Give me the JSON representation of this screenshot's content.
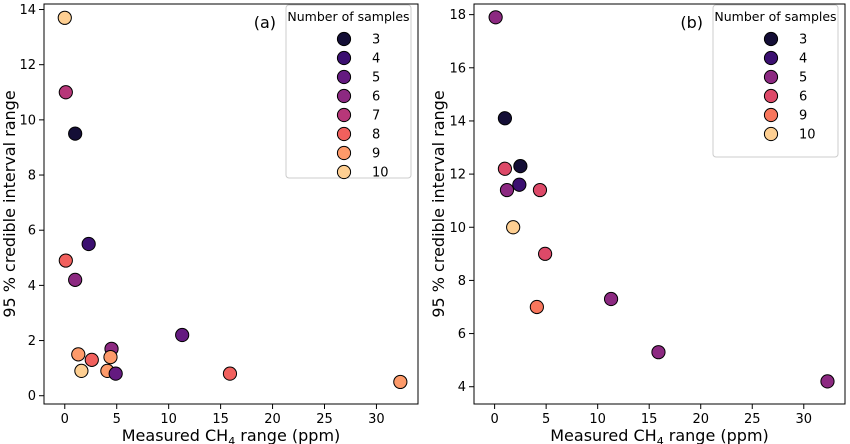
{
  "chart_data": [
    {
      "type": "scatter",
      "panel_label": "(a)",
      "xlabel": "Measured CH",
      "xlabel_sub": "4",
      "xlabel_suffix": " range (ppm)",
      "ylabel": "95 % credible interval range",
      "xlim": [
        -2,
        34
      ],
      "ylim": [
        -0.3,
        14.2
      ],
      "xticks": [
        0,
        5,
        10,
        15,
        20,
        25,
        30
      ],
      "yticks": [
        0,
        2,
        4,
        6,
        8,
        10,
        12,
        14
      ],
      "legend": {
        "title": "Number of samples",
        "placement": "top-right",
        "entries": [
          {
            "label": "3",
            "color": "#140e36"
          },
          {
            "label": "4",
            "color": "#3b0f70"
          },
          {
            "label": "5",
            "color": "#641a80"
          },
          {
            "label": "6",
            "color": "#8c2981"
          },
          {
            "label": "7",
            "color": "#b73779"
          },
          {
            "label": "8",
            "color": "#f1605d"
          },
          {
            "label": "9",
            "color": "#fd9a6a"
          },
          {
            "label": "10",
            "color": "#fecf92"
          }
        ]
      },
      "points": [
        {
          "x": 0.0,
          "y": 13.7,
          "group": "10"
        },
        {
          "x": 0.1,
          "y": 11.0,
          "group": "7"
        },
        {
          "x": 1.0,
          "y": 9.5,
          "group": "3"
        },
        {
          "x": 2.3,
          "y": 5.5,
          "group": "4"
        },
        {
          "x": 0.1,
          "y": 4.9,
          "group": "8"
        },
        {
          "x": 1.0,
          "y": 4.2,
          "group": "6"
        },
        {
          "x": 11.3,
          "y": 2.2,
          "group": "5"
        },
        {
          "x": 4.5,
          "y": 1.7,
          "group": "6"
        },
        {
          "x": 1.3,
          "y": 1.5,
          "group": "9"
        },
        {
          "x": 2.6,
          "y": 1.3,
          "group": "8"
        },
        {
          "x": 4.4,
          "y": 1.4,
          "group": "9"
        },
        {
          "x": 4.1,
          "y": 0.9,
          "group": "9"
        },
        {
          "x": 1.6,
          "y": 0.9,
          "group": "10"
        },
        {
          "x": 4.9,
          "y": 0.8,
          "group": "5"
        },
        {
          "x": 15.9,
          "y": 0.8,
          "group": "8"
        },
        {
          "x": 32.3,
          "y": 0.5,
          "group": "9"
        }
      ]
    },
    {
      "type": "scatter",
      "panel_label": "(b)",
      "xlabel": "Measured CH",
      "xlabel_sub": "4",
      "xlabel_suffix": " range (ppm)",
      "ylabel": "95 % credible interval range",
      "xlim": [
        -2,
        34
      ],
      "ylim": [
        3.35,
        18.4
      ],
      "xticks": [
        0,
        5,
        10,
        15,
        20,
        25,
        30
      ],
      "yticks": [
        4,
        6,
        8,
        10,
        12,
        14,
        16,
        18
      ],
      "legend": {
        "title": "Number of samples",
        "placement": "top-right",
        "entries": [
          {
            "label": "3",
            "color": "#140e36"
          },
          {
            "label": "4",
            "color": "#3b0f70"
          },
          {
            "label": "5",
            "color": "#8c2981"
          },
          {
            "label": "6",
            "color": "#dd4968"
          },
          {
            "label": "9",
            "color": "#f8765c"
          },
          {
            "label": "10",
            "color": "#fecf92"
          }
        ]
      },
      "points": [
        {
          "x": 0.1,
          "y": 17.9,
          "group": "5"
        },
        {
          "x": 1.0,
          "y": 14.1,
          "group": "3"
        },
        {
          "x": 2.5,
          "y": 12.3,
          "group": "3"
        },
        {
          "x": 1.0,
          "y": 12.2,
          "group": "6"
        },
        {
          "x": 2.4,
          "y": 11.6,
          "group": "4"
        },
        {
          "x": 1.2,
          "y": 11.4,
          "group": "5"
        },
        {
          "x": 4.4,
          "y": 11.4,
          "group": "6"
        },
        {
          "x": 1.8,
          "y": 10.0,
          "group": "10"
        },
        {
          "x": 4.9,
          "y": 9.0,
          "group": "6"
        },
        {
          "x": 4.1,
          "y": 7.0,
          "group": "9"
        },
        {
          "x": 11.3,
          "y": 7.3,
          "group": "5"
        },
        {
          "x": 15.9,
          "y": 5.3,
          "group": "5"
        },
        {
          "x": 32.3,
          "y": 4.2,
          "group": "5"
        }
      ]
    }
  ]
}
